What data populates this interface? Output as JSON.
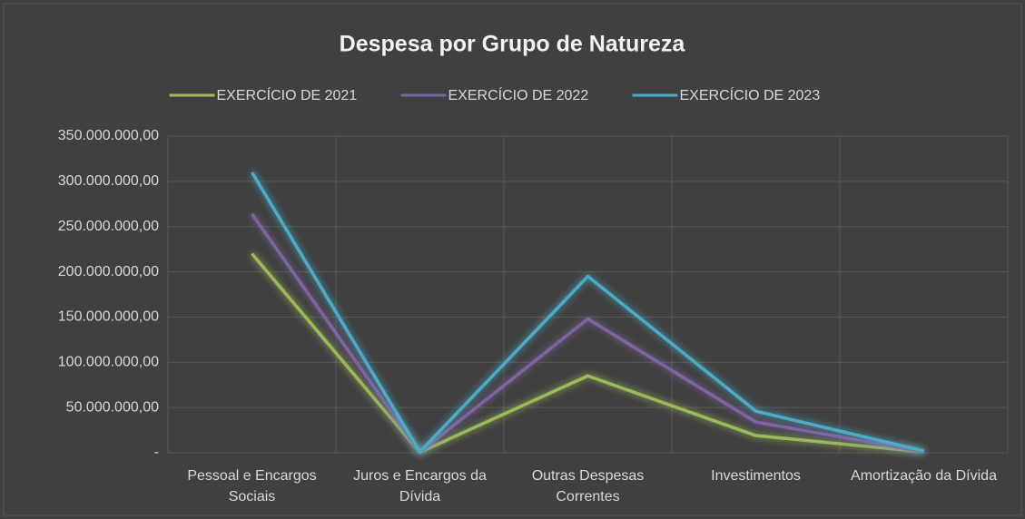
{
  "chart_data": {
    "type": "line",
    "title": "Despesa por Grupo de Natureza",
    "categories": [
      "Pessoal e Encargos Sociais",
      "Juros e Encargos da Dívida",
      "Outras Despesas Correntes",
      "Investimentos",
      "Amortização da Dívida"
    ],
    "series": [
      {
        "name": "EXERCÍCIO DE 2021",
        "color": "#9bbb59",
        "values": [
          220000000,
          500000,
          85000000,
          19000000,
          1000000
        ]
      },
      {
        "name": "EXERCÍCIO DE 2022",
        "color": "#8064a2",
        "values": [
          264000000,
          500000,
          148000000,
          34000000,
          1000000
        ]
      },
      {
        "name": "EXERCÍCIO DE 2023",
        "color": "#4bacc6",
        "values": [
          310000000,
          1000000,
          195000000,
          46000000,
          2000000
        ]
      }
    ],
    "ylim": [
      0,
      350000000
    ],
    "yticks": [
      {
        "value": 0,
        "label": "-"
      },
      {
        "value": 50000000,
        "label": "50.000.000,00"
      },
      {
        "value": 100000000,
        "label": "100.000.000,00"
      },
      {
        "value": 150000000,
        "label": "150.000.000,00"
      },
      {
        "value": 200000000,
        "label": "200.000.000,00"
      },
      {
        "value": 250000000,
        "label": "250.000.000,00"
      },
      {
        "value": 300000000,
        "label": "300.000.000,00"
      },
      {
        "value": 350000000,
        "label": "350.000.000,00"
      }
    ],
    "grid": true,
    "legend": "top"
  }
}
